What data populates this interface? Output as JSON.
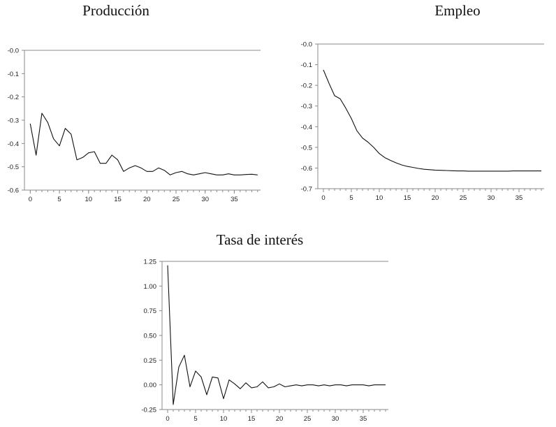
{
  "chart_data": [
    {
      "type": "line",
      "title": "Producción",
      "xlabel": "",
      "ylabel": "",
      "xlim": [
        -1,
        39.5
      ],
      "ylim": [
        -0.6,
        0.0
      ],
      "xticks": [
        0,
        5,
        10,
        15,
        20,
        25,
        30,
        35
      ],
      "xtick_labels": [
        "0",
        "5",
        "10",
        "15",
        "20",
        "25",
        "30",
        "35"
      ],
      "yticks": [
        0.0,
        -0.1,
        -0.2,
        -0.3,
        -0.4,
        -0.5,
        -0.6
      ],
      "ytick_labels": [
        "-0.0",
        "-0.1",
        "-0.2",
        "-0.3",
        "-0.4",
        "-0.5",
        "-0.6"
      ],
      "grid": false,
      "series": [
        {
          "name": "Producción",
          "x": [
            0,
            1,
            2,
            3,
            4,
            5,
            6,
            7,
            8,
            9,
            10,
            11,
            12,
            13,
            14,
            15,
            16,
            17,
            18,
            19,
            20,
            21,
            22,
            23,
            24,
            25,
            26,
            27,
            28,
            29,
            30,
            31,
            32,
            33,
            34,
            35,
            36,
            37,
            38,
            39
          ],
          "values": [
            -0.315,
            -0.45,
            -0.27,
            -0.31,
            -0.38,
            -0.41,
            -0.335,
            -0.36,
            -0.47,
            -0.46,
            -0.44,
            -0.435,
            -0.485,
            -0.485,
            -0.45,
            -0.47,
            -0.52,
            -0.505,
            -0.495,
            -0.505,
            -0.52,
            -0.52,
            -0.505,
            -0.515,
            -0.535,
            -0.525,
            -0.52,
            -0.53,
            -0.535,
            -0.53,
            -0.525,
            -0.53,
            -0.535,
            -0.535,
            -0.53,
            -0.535,
            -0.535,
            -0.533,
            -0.532,
            -0.535
          ]
        }
      ]
    },
    {
      "type": "line",
      "title": "Empleo",
      "xlabel": "",
      "ylabel": "",
      "xlim": [
        -1,
        39.5
      ],
      "ylim": [
        -0.7,
        0.0
      ],
      "xticks": [
        0,
        5,
        10,
        15,
        20,
        25,
        30,
        35
      ],
      "xtick_labels": [
        "0",
        "5",
        "10",
        "15",
        "20",
        "25",
        "30",
        "35"
      ],
      "yticks": [
        0.0,
        -0.1,
        -0.2,
        -0.3,
        -0.4,
        -0.5,
        -0.6,
        -0.7
      ],
      "ytick_labels": [
        "-0.0",
        "-0.1",
        "-0.2",
        "-0.3",
        "-0.4",
        "-0.5",
        "-0.6",
        "-0.7"
      ],
      "grid": false,
      "series": [
        {
          "name": "Empleo",
          "x": [
            0,
            1,
            2,
            3,
            4,
            5,
            6,
            7,
            8,
            9,
            10,
            11,
            12,
            13,
            14,
            15,
            16,
            17,
            18,
            19,
            20,
            21,
            22,
            23,
            24,
            25,
            26,
            27,
            28,
            29,
            30,
            31,
            32,
            33,
            34,
            35,
            36,
            37,
            38,
            39
          ],
          "values": [
            -0.125,
            -0.19,
            -0.25,
            -0.265,
            -0.31,
            -0.36,
            -0.42,
            -0.455,
            -0.475,
            -0.5,
            -0.53,
            -0.55,
            -0.563,
            -0.575,
            -0.585,
            -0.592,
            -0.597,
            -0.602,
            -0.606,
            -0.608,
            -0.61,
            -0.611,
            -0.612,
            -0.613,
            -0.614,
            -0.614,
            -0.615,
            -0.615,
            -0.615,
            -0.615,
            -0.615,
            -0.615,
            -0.615,
            -0.615,
            -0.614,
            -0.614,
            -0.614,
            -0.614,
            -0.614,
            -0.614
          ]
        }
      ]
    },
    {
      "type": "line",
      "title": "Tasa de interés",
      "xlabel": "",
      "ylabel": "",
      "xlim": [
        -1,
        39.5
      ],
      "ylim": [
        -0.25,
        1.25
      ],
      "xticks": [
        0,
        5,
        10,
        15,
        20,
        25,
        30,
        35
      ],
      "xtick_labels": [
        "0",
        "5",
        "10",
        "15",
        "20",
        "25",
        "30",
        "35"
      ],
      "yticks": [
        1.25,
        1.0,
        0.75,
        0.5,
        0.25,
        0.0,
        -0.25
      ],
      "ytick_labels": [
        "1.25",
        "1.00",
        "0.75",
        "0.50",
        "0.25",
        "0.00",
        "-0.25"
      ],
      "grid": false,
      "series": [
        {
          "name": "Tasa de interés",
          "x": [
            0,
            1,
            2,
            3,
            4,
            5,
            6,
            7,
            8,
            9,
            10,
            11,
            12,
            13,
            14,
            15,
            16,
            17,
            18,
            19,
            20,
            21,
            22,
            23,
            24,
            25,
            26,
            27,
            28,
            29,
            30,
            31,
            32,
            33,
            34,
            35,
            36,
            37,
            38,
            39
          ],
          "values": [
            1.21,
            -0.2,
            0.18,
            0.3,
            -0.02,
            0.14,
            0.08,
            -0.1,
            0.08,
            0.07,
            -0.14,
            0.05,
            0.01,
            -0.04,
            0.02,
            -0.03,
            -0.02,
            0.03,
            -0.03,
            -0.02,
            0.01,
            -0.02,
            -0.01,
            0.0,
            -0.01,
            0.0,
            0.0,
            -0.01,
            0.0,
            -0.01,
            0.0,
            0.0,
            -0.01,
            0.0,
            0.0,
            0.0,
            -0.01,
            0.0,
            0.0,
            0.0
          ]
        }
      ]
    }
  ]
}
